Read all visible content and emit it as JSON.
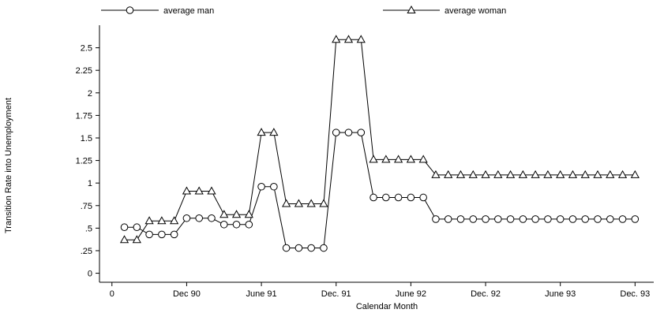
{
  "chart_data": {
    "type": "line",
    "xlabel": "Calendar Month",
    "ylabel": "Transition Rate into Unemployment",
    "x_ticks": [
      {
        "x": 0,
        "label": "0"
      },
      {
        "x": 6,
        "label": "Dec 90"
      },
      {
        "x": 12,
        "label": "June 91"
      },
      {
        "x": 18,
        "label": "Dec. 91"
      },
      {
        "x": 24,
        "label": "June 92"
      },
      {
        "x": 30,
        "label": "Dec. 92"
      },
      {
        "x": 36,
        "label": "June 93"
      },
      {
        "x": 42,
        "label": "Dec. 93"
      }
    ],
    "xlim": [
      -1,
      43.5
    ],
    "y_ticks": [
      {
        "y": 0,
        "label": "0"
      },
      {
        "y": 0.25,
        "label": ".25"
      },
      {
        "y": 0.5,
        "label": ".5"
      },
      {
        "y": 0.75,
        "label": ".75"
      },
      {
        "y": 1,
        "label": "1"
      },
      {
        "y": 1.25,
        "label": "1.25"
      },
      {
        "y": 1.5,
        "label": "1.5"
      },
      {
        "y": 1.75,
        "label": "1.75"
      },
      {
        "y": 2,
        "label": "2"
      },
      {
        "y": 2.25,
        "label": "2.25"
      },
      {
        "y": 2.5,
        "label": "2.5"
      }
    ],
    "ylim": [
      -0.1,
      2.75
    ],
    "legend_position": "top",
    "series": [
      {
        "name": "average man",
        "marker": "circle",
        "x": [
          1,
          2,
          3,
          4,
          5,
          6,
          7,
          8,
          9,
          10,
          11,
          12,
          13,
          14,
          15,
          16,
          17,
          18,
          19,
          20,
          21,
          22,
          23,
          24,
          25,
          26,
          27,
          28,
          29,
          30,
          31,
          32,
          33,
          34,
          35,
          36,
          37,
          38,
          39,
          40,
          41,
          42
        ],
        "values": [
          0.51,
          0.51,
          0.43,
          0.43,
          0.43,
          0.61,
          0.61,
          0.61,
          0.54,
          0.54,
          0.54,
          0.96,
          0.96,
          0.28,
          0.28,
          0.28,
          0.28,
          1.56,
          1.56,
          1.56,
          0.84,
          0.84,
          0.84,
          0.84,
          0.84,
          0.6,
          0.6,
          0.6,
          0.6,
          0.6,
          0.6,
          0.6,
          0.6,
          0.6,
          0.6,
          0.6,
          0.6,
          0.6,
          0.6,
          0.6,
          0.6,
          0.6
        ]
      },
      {
        "name": "average woman",
        "marker": "triangle",
        "x": [
          1,
          2,
          3,
          4,
          5,
          6,
          7,
          8,
          9,
          10,
          11,
          12,
          13,
          14,
          15,
          16,
          17,
          18,
          19,
          20,
          21,
          22,
          23,
          24,
          25,
          26,
          27,
          28,
          29,
          30,
          31,
          32,
          33,
          34,
          35,
          36,
          37,
          38,
          39,
          40,
          41,
          42
        ],
        "values": [
          0.37,
          0.37,
          0.58,
          0.58,
          0.58,
          0.91,
          0.91,
          0.91,
          0.65,
          0.65,
          0.65,
          1.56,
          1.56,
          0.77,
          0.77,
          0.77,
          0.77,
          2.59,
          2.59,
          2.59,
          1.26,
          1.26,
          1.26,
          1.26,
          1.26,
          1.09,
          1.09,
          1.09,
          1.09,
          1.09,
          1.09,
          1.09,
          1.09,
          1.09,
          1.09,
          1.09,
          1.09,
          1.09,
          1.09,
          1.09,
          1.09,
          1.09
        ]
      }
    ]
  }
}
